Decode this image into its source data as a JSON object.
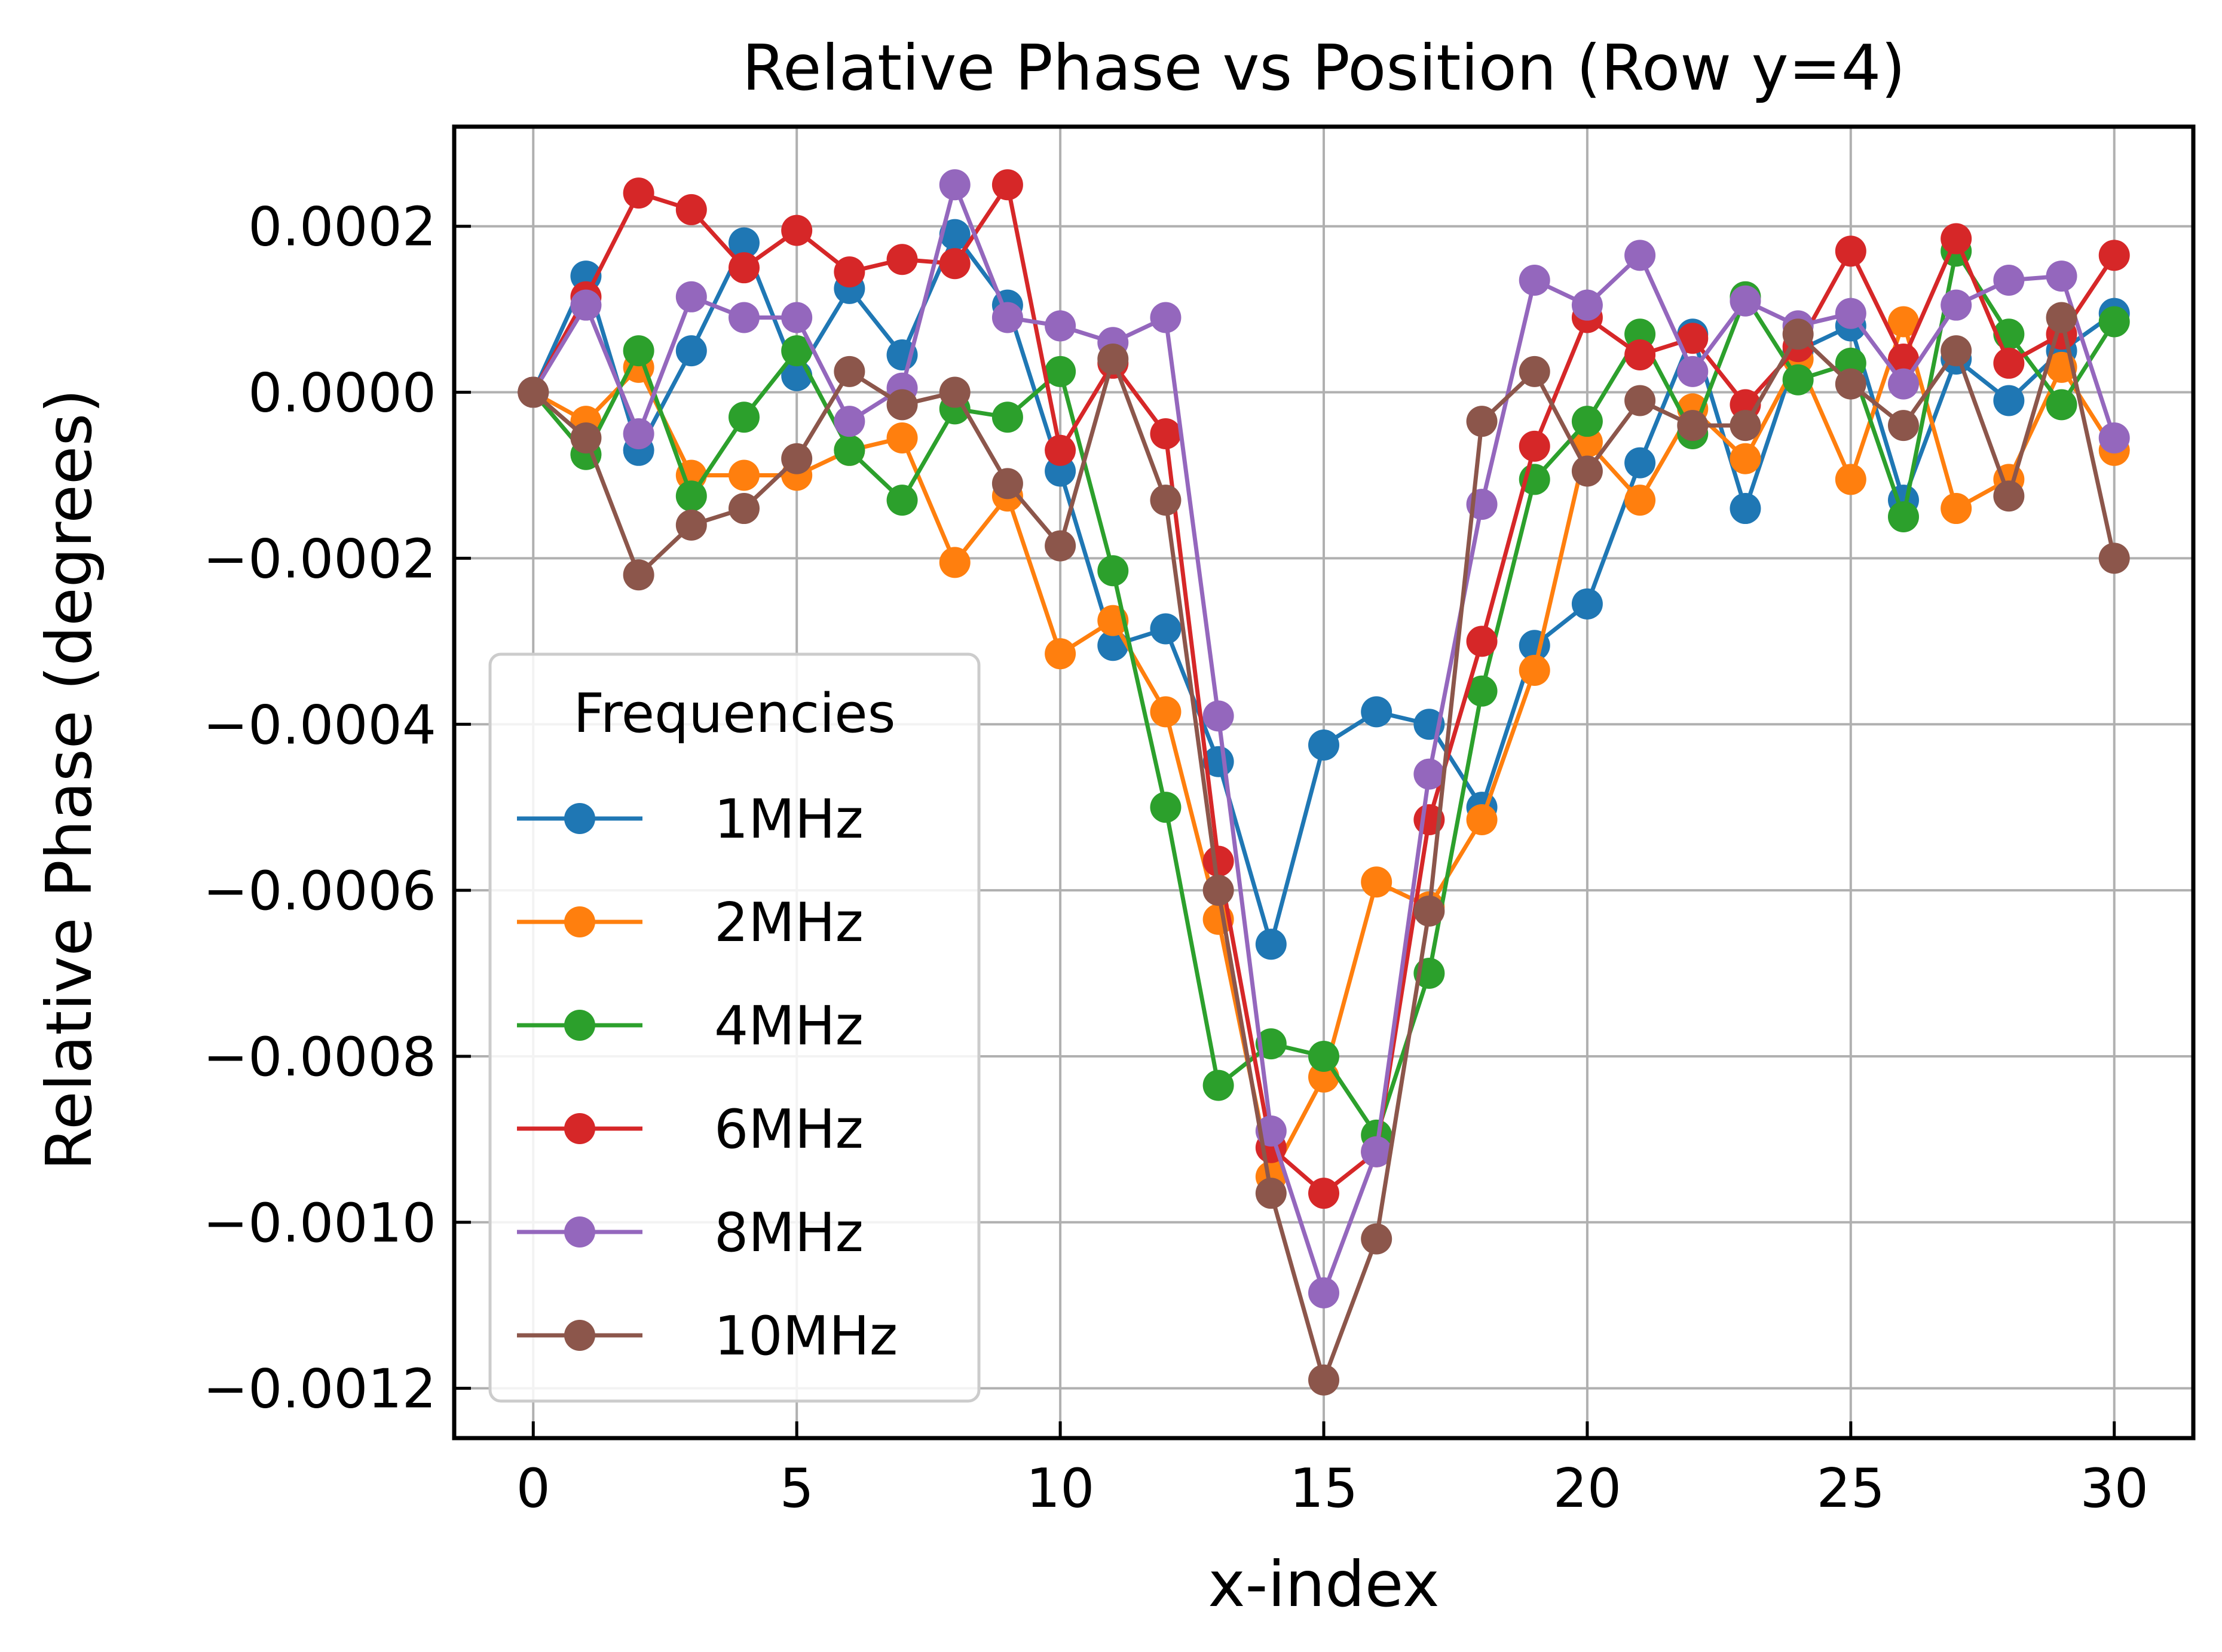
{
  "chart_data": {
    "type": "line",
    "title": "Relative Phase vs Position (Row y=4)",
    "xlabel": "x-index",
    "ylabel": "Relative Phase (degrees)",
    "xlim": [
      -1.5,
      31.5
    ],
    "ylim": [
      -0.00126,
      0.00032
    ],
    "x_ticks": [
      0,
      5,
      10,
      15,
      20,
      25,
      30
    ],
    "x_tick_labels": [
      "0",
      "5",
      "10",
      "15",
      "20",
      "25",
      "30"
    ],
    "y_ticks": [
      0.0002,
      0.0,
      -0.0002,
      -0.0004,
      -0.0006,
      -0.0008,
      -0.001,
      -0.0012
    ],
    "y_tick_labels": [
      "0.0002",
      "0.0000",
      "−0.0002",
      "−0.0004",
      "−0.0006",
      "−0.0008",
      "−0.0010",
      "−0.0012"
    ],
    "grid": true,
    "legend": {
      "title": "Frequencies",
      "position": "lower-left"
    },
    "x": [
      0,
      1,
      2,
      3,
      4,
      5,
      6,
      7,
      8,
      9,
      10,
      11,
      12,
      13,
      14,
      15,
      16,
      17,
      18,
      19,
      20,
      21,
      22,
      23,
      24,
      25,
      26,
      27,
      28,
      29,
      30
    ],
    "series": [
      {
        "name": "1MHz",
        "color": "#1f77b4",
        "values": [
          0.0,
          0.00014,
          -7e-05,
          5e-05,
          0.00018,
          2e-05,
          0.000125,
          4.5e-05,
          0.00019,
          0.000105,
          -9.5e-05,
          -0.000305,
          -0.000285,
          -0.000445,
          -0.000665,
          -0.000425,
          -0.000385,
          -0.0004,
          -0.0005,
          -0.000305,
          -0.000255,
          -8.5e-05,
          7e-05,
          -0.00014,
          5e-05,
          8e-05,
          -0.00013,
          4e-05,
          -1e-05,
          5e-05,
          9.5e-05
        ]
      },
      {
        "name": "2MHz",
        "color": "#ff7f0e",
        "values": [
          0.0,
          -3.5e-05,
          3e-05,
          -0.0001,
          -0.0001,
          -0.0001,
          -7e-05,
          -5.5e-05,
          -0.000205,
          -0.000125,
          -0.000315,
          -0.000275,
          -0.000385,
          -0.000635,
          -0.000945,
          -0.000825,
          -0.00059,
          -0.00062,
          -0.000515,
          -0.000335,
          -6e-05,
          -0.00013,
          -2e-05,
          -8e-05,
          4e-05,
          -0.000105,
          8.5e-05,
          -0.00014,
          -0.000105,
          3e-05,
          -7e-05
        ]
      },
      {
        "name": "4MHz",
        "color": "#2ca02c",
        "values": [
          0.0,
          -7.5e-05,
          5e-05,
          -0.000125,
          -3e-05,
          5e-05,
          -7e-05,
          -0.00013,
          -2e-05,
          -3e-05,
          2.5e-05,
          -0.000215,
          -0.0005,
          -0.000835,
          -0.000785,
          -0.0008,
          -0.000895,
          -0.0007,
          -0.00036,
          -0.000105,
          -3.5e-05,
          7e-05,
          -5e-05,
          0.000115,
          1.5e-05,
          3.5e-05,
          -0.00015,
          0.00017,
          7e-05,
          -1.5e-05,
          8.5e-05
        ]
      },
      {
        "name": "6MHz",
        "color": "#d62728",
        "values": [
          0.0,
          0.000115,
          0.00024,
          0.00022,
          0.00015,
          0.000195,
          0.000145,
          0.00016,
          0.000155,
          0.00025,
          -7e-05,
          3.5e-05,
          -5e-05,
          -0.000565,
          -0.00091,
          -0.000965,
          -0.000915,
          -0.000515,
          -0.0003,
          -6.5e-05,
          9e-05,
          4.5e-05,
          6.5e-05,
          -1.5e-05,
          5.5e-05,
          0.00017,
          4e-05,
          0.000185,
          3.5e-05,
          7e-05,
          0.000165
        ]
      },
      {
        "name": "8MHz",
        "color": "#9467bd",
        "values": [
          0.0,
          0.000105,
          -5e-05,
          0.000115,
          9e-05,
          9e-05,
          -3.5e-05,
          5e-06,
          0.00025,
          9e-05,
          8e-05,
          6e-05,
          9e-05,
          -0.00039,
          -0.00089,
          -0.001085,
          -0.000915,
          -0.00046,
          -0.000135,
          0.000135,
          0.000105,
          0.000165,
          2.5e-05,
          0.00011,
          8e-05,
          9.5e-05,
          1e-05,
          0.000105,
          0.000135,
          0.00014,
          -5.5e-05
        ]
      },
      {
        "name": "10MHz",
        "color": "#8c564b",
        "values": [
          0.0,
          -5.5e-05,
          -0.00022,
          -0.00016,
          -0.00014,
          -8e-05,
          2.5e-05,
          -1.5e-05,
          0.0,
          -0.00011,
          -0.000185,
          4e-05,
          -0.00013,
          -0.0006,
          -0.000965,
          -0.00119,
          -0.00102,
          -0.000625,
          -3.5e-05,
          2.5e-05,
          -9.5e-05,
          -1e-05,
          -4e-05,
          -4e-05,
          7e-05,
          1e-05,
          -4e-05,
          5e-05,
          -0.000125,
          9e-05,
          -0.0002
        ]
      }
    ]
  }
}
